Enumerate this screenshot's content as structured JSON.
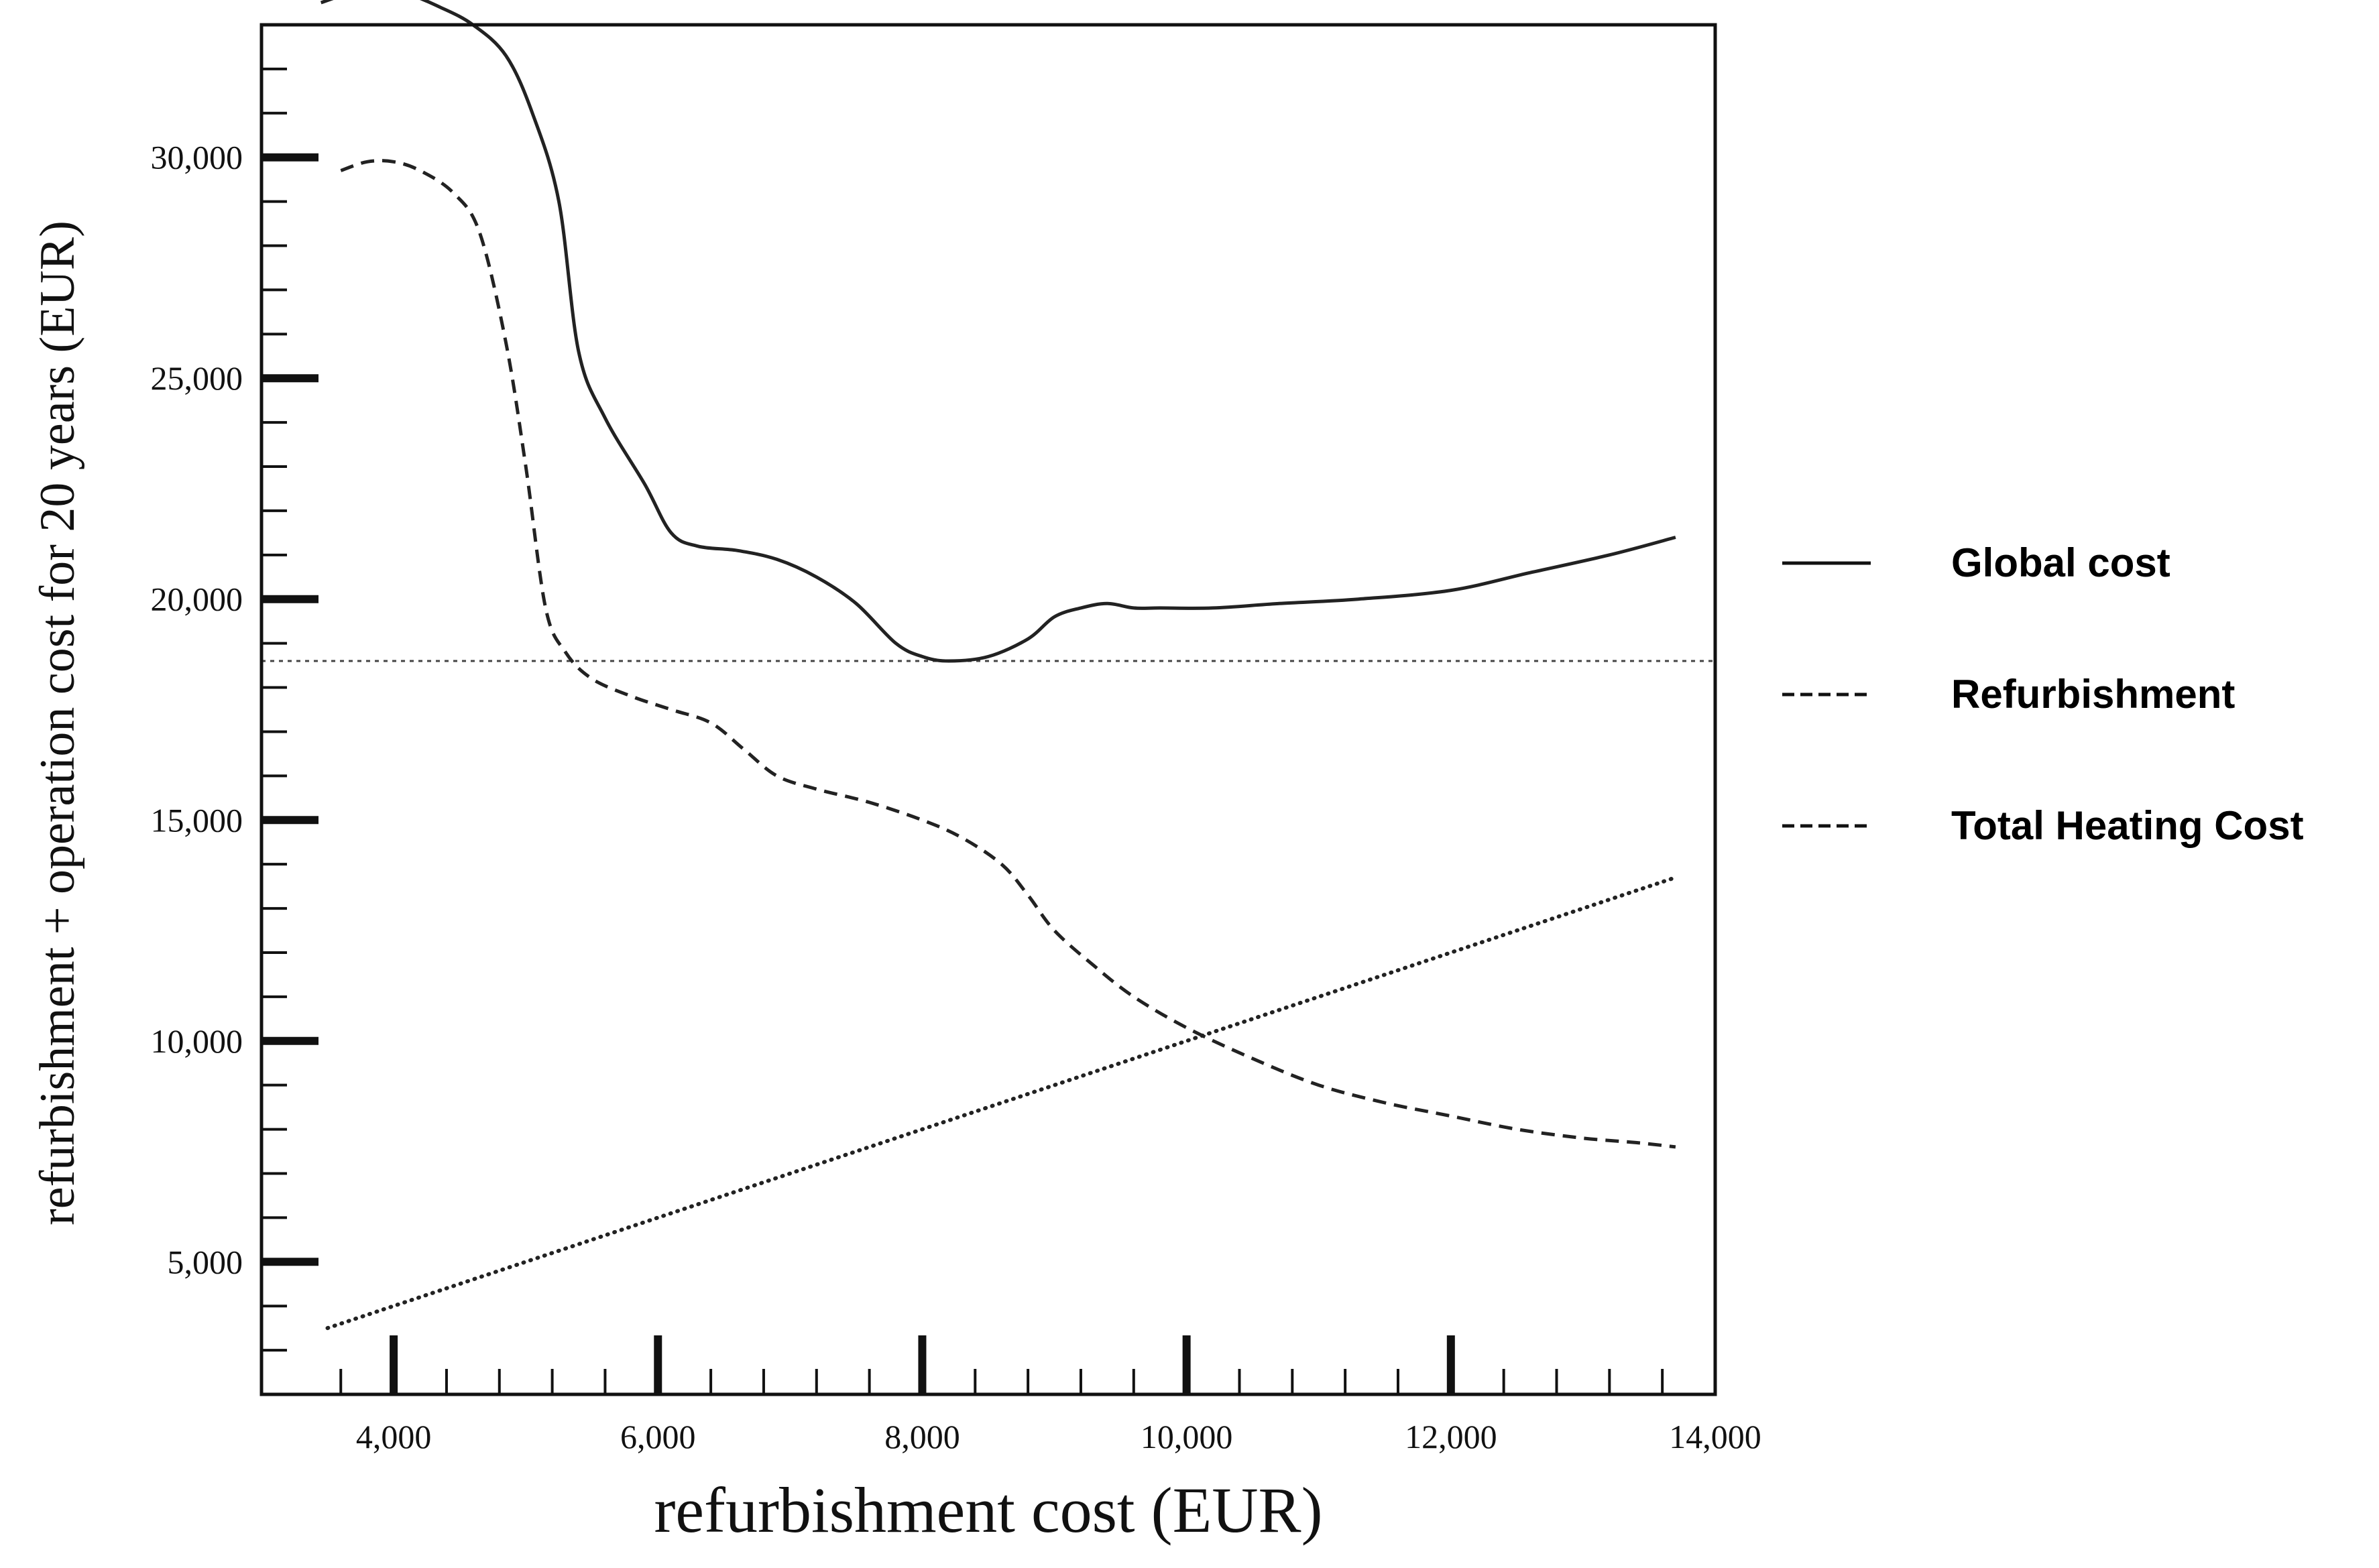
{
  "chart_data": {
    "type": "line",
    "xlabel": "refurbishment cost (EUR)",
    "ylabel": "refurbishment + operation cost for 20 years (EUR)",
    "xlim": [
      3000,
      14000
    ],
    "ylim": [
      2000,
      33000
    ],
    "x_ticks": [
      4000,
      6000,
      8000,
      10000,
      12000,
      14000
    ],
    "x_tick_labels": [
      "4,000",
      "6,000",
      "8,000",
      "10,000",
      "12,000",
      "14,000"
    ],
    "y_ticks": [
      5000,
      10000,
      15000,
      20000,
      25000,
      30000
    ],
    "y_tick_labels": [
      "5,000",
      "10,000",
      "15,000",
      "20,000",
      "25,000",
      "30,000"
    ],
    "grid": false,
    "legend_position": "right",
    "reference_line": {
      "y": 18600,
      "style": "dotted"
    },
    "series": [
      {
        "name": "Global cost",
        "style": "solid",
        "color": "#222222",
        "x": [
          3450,
          3650,
          3850,
          4100,
          4350,
          4600,
          4850,
          5050,
          5250,
          5400,
          5600,
          5900,
          6100,
          6300,
          6600,
          6900,
          7200,
          7500,
          7800,
          8000,
          8200,
          8500,
          8800,
          9000,
          9200,
          9400,
          9600,
          9800,
          10200,
          10700,
          11300,
          12000,
          12600,
          13200,
          13700
        ],
        "y": [
          33500,
          33700,
          33800,
          33700,
          33400,
          33000,
          32300,
          31000,
          29000,
          25600,
          24100,
          22600,
          21500,
          21200,
          21100,
          20900,
          20500,
          19900,
          19000,
          18700,
          18600,
          18700,
          19100,
          19600,
          19800,
          19900,
          19800,
          19800,
          19800,
          19900,
          20000,
          20200,
          20600,
          21000,
          21400
        ]
      },
      {
        "name": "Refurbishment",
        "style": "dashed",
        "color": "#222222",
        "x": [
          3600,
          3800,
          4000,
          4200,
          4450,
          4650,
          4850,
          5000,
          5150,
          5300,
          5500,
          5800,
          6100,
          6400,
          6650,
          6900,
          7200,
          7600,
          8000,
          8300,
          8600,
          8800,
          9000,
          9300,
          9600,
          10000,
          10500,
          11000,
          11500,
          12000,
          12500,
          13000,
          13400,
          13700
        ],
        "y": [
          29700,
          29900,
          29900,
          29700,
          29200,
          28300,
          25800,
          23000,
          19800,
          18800,
          18200,
          17800,
          17500,
          17200,
          16600,
          16000,
          15700,
          15400,
          15000,
          14600,
          14000,
          13300,
          12500,
          11700,
          11000,
          10300,
          9600,
          9000,
          8600,
          8300,
          8000,
          7800,
          7700,
          7600
        ]
      },
      {
        "name": "Total Heating Cost",
        "style": "dotted",
        "color": "#222222",
        "x": [
          3500,
          13700
        ],
        "y": [
          3500,
          13700
        ]
      }
    ]
  }
}
